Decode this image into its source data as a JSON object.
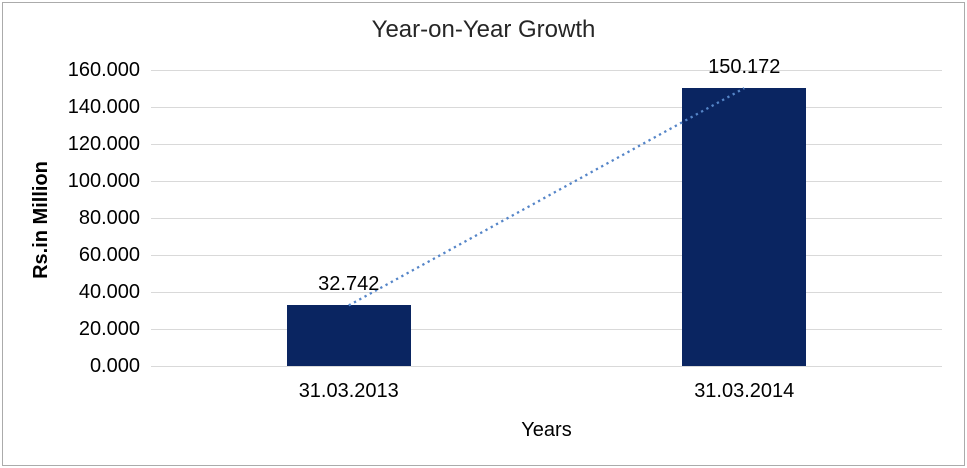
{
  "chart_data": {
    "type": "bar",
    "title": "Year-on-Year Growth",
    "xlabel": "Years",
    "ylabel": "Rs.in Million",
    "categories": [
      "31.03.2013",
      "31.03.2014"
    ],
    "values": [
      32.742,
      150.172
    ],
    "data_labels": [
      "32.742",
      "150.172"
    ],
    "ylim": [
      0,
      160
    ],
    "ytick_step": 20,
    "ytick_decimals": 3,
    "grid": "horizontal",
    "legend": "none",
    "trendline": {
      "style": "dotted",
      "from_series_point": 0,
      "to_series_point": 1
    },
    "colors": {
      "bar": "#0A2561",
      "trendline": "#5585C8",
      "gridline": "#D9D9D9",
      "title_text": "#262626",
      "axis_text": "#000000"
    }
  }
}
